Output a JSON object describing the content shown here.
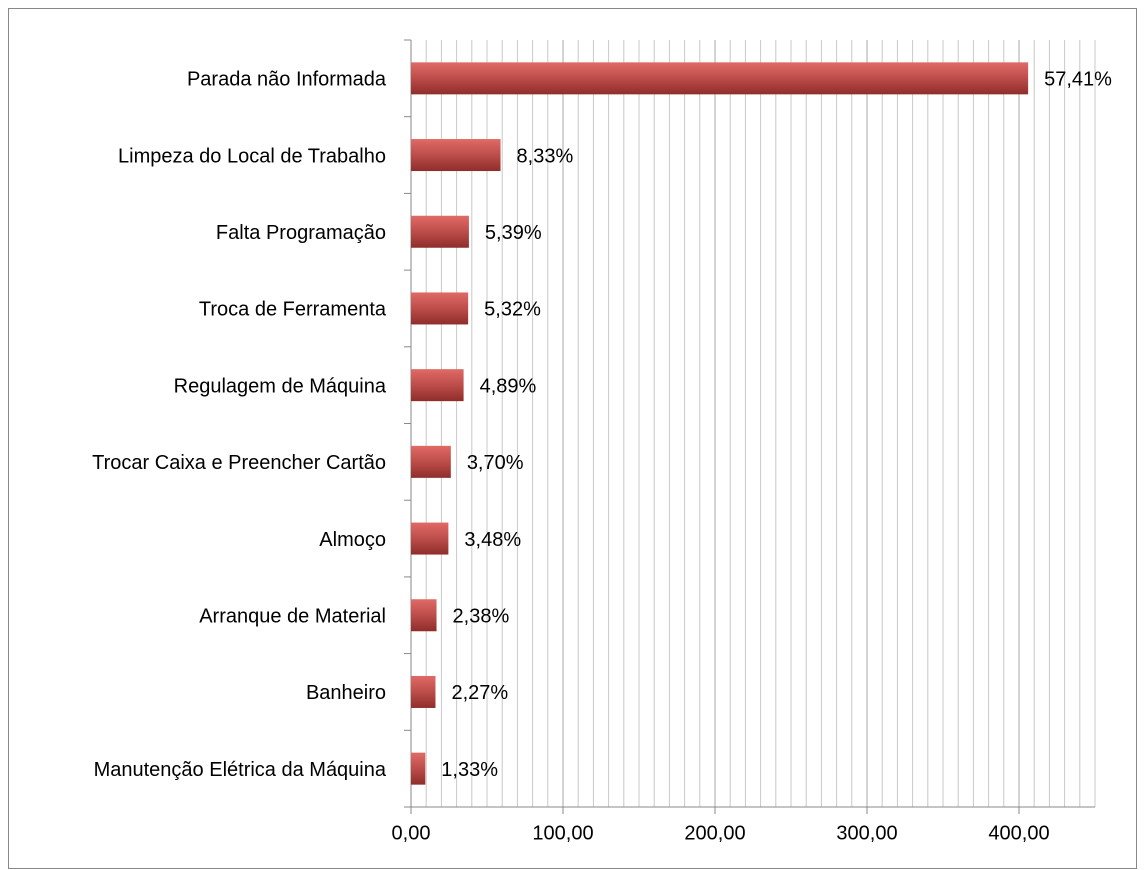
{
  "chart_data": {
    "type": "hbar",
    "categories": [
      "Parada não Informada",
      "Limpeza do Local de Trabalho",
      "Falta Programação",
      "Troca de Ferramenta",
      "Regulagem de Máquina",
      "Trocar Caixa e Preencher Cartão",
      "Almoço",
      "Arranque de Material",
      "Banheiro",
      "Manutenção Elétrica da Máquina"
    ],
    "values": [
      406,
      58.9,
      38.1,
      37.6,
      34.6,
      26.2,
      24.6,
      16.8,
      16.1,
      9.4
    ],
    "value_labels": [
      "57,41%",
      "8,33%",
      "5,39%",
      "5,32%",
      "4,89%",
      "3,70%",
      "3,48%",
      "2,38%",
      "2,27%",
      "1,33%"
    ],
    "color": "#c0504d",
    "xlim": [
      0,
      450
    ],
    "xticks": [
      {
        "value": 0,
        "label": "0,00"
      },
      {
        "value": 100,
        "label": "100,00"
      },
      {
        "value": 200,
        "label": "200,00"
      },
      {
        "value": 300,
        "label": "300,00"
      },
      {
        "value": 400,
        "label": "400,00"
      }
    ],
    "grid": true,
    "minor_grid_step": 10
  }
}
